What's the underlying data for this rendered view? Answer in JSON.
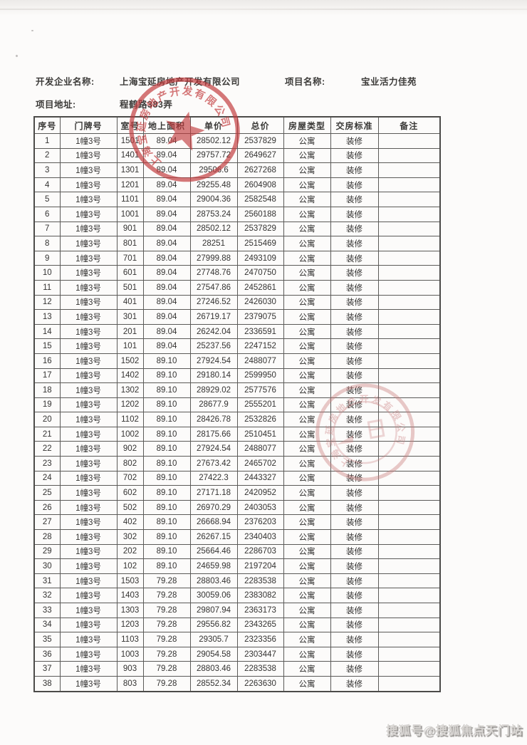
{
  "page": {
    "form": {
      "developer_label": "开发企业名称:",
      "developer_value": "上海宝延房地产开发有限公司",
      "project_label": "项目名称:",
      "project_value": "宝业活力佳苑",
      "address_label": "项目地址:",
      "address_value": "程鹤路383弄"
    },
    "table": {
      "columns": [
        "序号",
        "门牌号",
        "室号",
        "地上面积",
        "单价",
        "总价",
        "房屋类型",
        "交房标准",
        "备注"
      ],
      "rows": [
        [
          "1",
          "1幢3号",
          "1501",
          "89.04",
          "28502.12",
          "2537829",
          "公寓",
          "装修",
          ""
        ],
        [
          "2",
          "1幢3号",
          "1401",
          "89.04",
          "29757.72",
          "2649627",
          "公寓",
          "装修",
          ""
        ],
        [
          "3",
          "1幢3号",
          "1301",
          "89.04",
          "29506.6",
          "2627268",
          "公寓",
          "装修",
          ""
        ],
        [
          "4",
          "1幢3号",
          "1201",
          "89.04",
          "29255.48",
          "2604908",
          "公寓",
          "装修",
          ""
        ],
        [
          "5",
          "1幢3号",
          "1101",
          "89.04",
          "29004.36",
          "2582548",
          "公寓",
          "装修",
          ""
        ],
        [
          "6",
          "1幢3号",
          "1001",
          "89.04",
          "28753.24",
          "2560188",
          "公寓",
          "装修",
          ""
        ],
        [
          "7",
          "1幢3号",
          "901",
          "89.04",
          "28502.12",
          "2537829",
          "公寓",
          "装修",
          ""
        ],
        [
          "8",
          "1幢3号",
          "801",
          "89.04",
          "28251",
          "2515469",
          "公寓",
          "装修",
          ""
        ],
        [
          "9",
          "1幢3号",
          "701",
          "89.04",
          "27999.88",
          "2493109",
          "公寓",
          "装修",
          ""
        ],
        [
          "10",
          "1幢3号",
          "601",
          "89.04",
          "27748.76",
          "2470750",
          "公寓",
          "装修",
          ""
        ],
        [
          "11",
          "1幢3号",
          "501",
          "89.04",
          "27547.86",
          "2452861",
          "公寓",
          "装修",
          ""
        ],
        [
          "12",
          "1幢3号",
          "401",
          "89.04",
          "27246.52",
          "2426030",
          "公寓",
          "装修",
          ""
        ],
        [
          "13",
          "1幢3号",
          "301",
          "89.04",
          "26719.17",
          "2379075",
          "公寓",
          "装修",
          ""
        ],
        [
          "14",
          "1幢3号",
          "201",
          "89.04",
          "26242.04",
          "2336591",
          "公寓",
          "装修",
          ""
        ],
        [
          "15",
          "1幢3号",
          "101",
          "89.04",
          "25237.56",
          "2247152",
          "公寓",
          "装修",
          ""
        ],
        [
          "16",
          "1幢3号",
          "1502",
          "89.10",
          "27924.54",
          "2488077",
          "公寓",
          "装修",
          ""
        ],
        [
          "17",
          "1幢3号",
          "1402",
          "89.10",
          "29180.14",
          "2599950",
          "公寓",
          "装修",
          ""
        ],
        [
          "18",
          "1幢3号",
          "1302",
          "89.10",
          "28929.02",
          "2577576",
          "公寓",
          "装修",
          ""
        ],
        [
          "19",
          "1幢3号",
          "1202",
          "89.10",
          "28677.9",
          "2555201",
          "公寓",
          "装修",
          ""
        ],
        [
          "20",
          "1幢3号",
          "1102",
          "89.10",
          "28426.78",
          "2532826",
          "公寓",
          "装修",
          ""
        ],
        [
          "21",
          "1幢3号",
          "1002",
          "89.10",
          "28175.66",
          "2510451",
          "公寓",
          "装修",
          ""
        ],
        [
          "22",
          "1幢3号",
          "902",
          "89.10",
          "27924.54",
          "2488077",
          "公寓",
          "装修",
          ""
        ],
        [
          "23",
          "1幢3号",
          "802",
          "89.10",
          "27673.42",
          "2465702",
          "公寓",
          "装修",
          ""
        ],
        [
          "24",
          "1幢3号",
          "702",
          "89.10",
          "27422.3",
          "2443327",
          "公寓",
          "装修",
          ""
        ],
        [
          "25",
          "1幢3号",
          "602",
          "89.10",
          "27171.18",
          "2420952",
          "公寓",
          "装修",
          ""
        ],
        [
          "26",
          "1幢3号",
          "502",
          "89.10",
          "26970.29",
          "2403053",
          "公寓",
          "装修",
          ""
        ],
        [
          "27",
          "1幢3号",
          "402",
          "89.10",
          "26668.94",
          "2376203",
          "公寓",
          "装修",
          ""
        ],
        [
          "28",
          "1幢3号",
          "302",
          "89.10",
          "26267.15",
          "2340403",
          "公寓",
          "装修",
          ""
        ],
        [
          "29",
          "1幢3号",
          "202",
          "89.10",
          "25664.46",
          "2286703",
          "公寓",
          "装修",
          ""
        ],
        [
          "30",
          "1幢3号",
          "102",
          "89.10",
          "24659.98",
          "2197204",
          "公寓",
          "装修",
          ""
        ],
        [
          "31",
          "1幢3号",
          "1503",
          "79.28",
          "28803.46",
          "2283538",
          "公寓",
          "装修",
          ""
        ],
        [
          "32",
          "1幢3号",
          "1403",
          "79.28",
          "30059.06",
          "2383082",
          "公寓",
          "装修",
          ""
        ],
        [
          "33",
          "1幢3号",
          "1303",
          "79.28",
          "29807.94",
          "2363173",
          "公寓",
          "装修",
          ""
        ],
        [
          "34",
          "1幢3号",
          "1203",
          "79.28",
          "29556.82",
          "2343265",
          "公寓",
          "装修",
          ""
        ],
        [
          "35",
          "1幢3号",
          "1103",
          "79.28",
          "29305.7",
          "2323356",
          "公寓",
          "装修",
          ""
        ],
        [
          "36",
          "1幢3号",
          "1003",
          "79.28",
          "29054.58",
          "2303447",
          "公寓",
          "装修",
          ""
        ],
        [
          "37",
          "1幢3号",
          "903",
          "79.28",
          "28803.46",
          "2283538",
          "公寓",
          "装修",
          ""
        ],
        [
          "38",
          "1幢3号",
          "803",
          "79.28",
          "28552.34",
          "2263630",
          "公寓",
          "装修",
          ""
        ]
      ]
    },
    "stamps": {
      "company_seal_text": "上海宝延房地产开发有限公司",
      "seal_color": "#c23a3c",
      "faint_seal_color": "#c87c7c"
    },
    "watermark": "搜狐号@搜狐焦点天门站"
  }
}
